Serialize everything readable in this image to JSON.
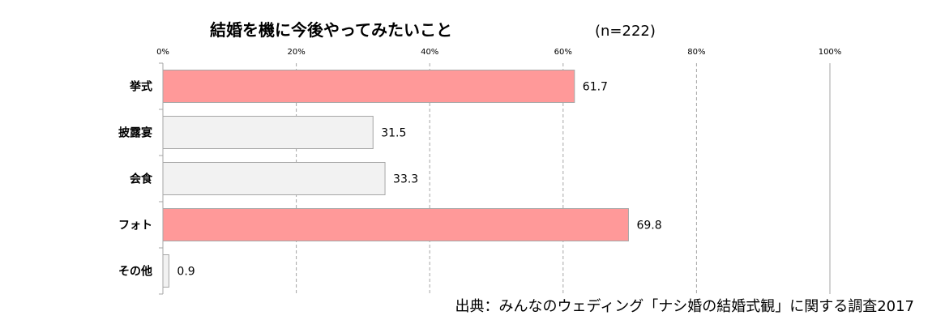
{
  "chart_data": {
    "type": "bar",
    "orientation": "horizontal",
    "title": "結婚を機に今後やってみたいこと",
    "subtitle": "(n=222)",
    "categories": [
      "挙式",
      "披露宴",
      "会食",
      "フォト",
      "その他"
    ],
    "values": [
      61.7,
      31.5,
      33.3,
      69.8,
      0.9
    ],
    "value_labels": [
      "61.7",
      "31.5",
      "33.3",
      "69.8",
      "0.9"
    ],
    "highlighted": [
      true,
      false,
      false,
      true,
      false
    ],
    "xlabel": "",
    "ylabel": "",
    "xlim": [
      0,
      100
    ],
    "ticks": [
      0,
      20,
      40,
      60,
      80,
      100
    ],
    "tick_labels": [
      "0%",
      "20%",
      "40%",
      "60%",
      "80%",
      "100%"
    ],
    "grid": true,
    "legend": "none",
    "colors": {
      "highlight": "#ff9999",
      "normal": "#f2f2f2",
      "bar_stroke": "#a6a6a6",
      "grid": "#a6a6a6",
      "axis": "#a6a6a6"
    }
  },
  "source": "出典：みんなのウェディング「ナシ婚の結婚式観」に関する調査2017"
}
